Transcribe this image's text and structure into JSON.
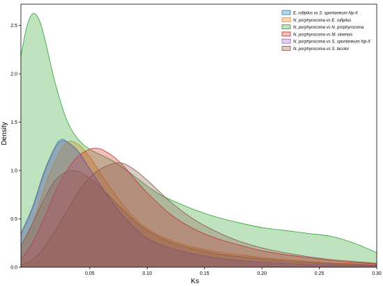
{
  "chart_data": {
    "type": "area",
    "title": "",
    "xlabel": "Ks",
    "ylabel": "Density",
    "xlim": [
      -0.01,
      0.3
    ],
    "ylim": [
      0,
      2.72
    ],
    "xticks": [
      {
        "value": 0.05,
        "label": "0.05"
      },
      {
        "value": 0.1,
        "label": "0.10"
      },
      {
        "value": 0.15,
        "label": "0.15"
      },
      {
        "value": 0.2,
        "label": "0.20"
      },
      {
        "value": 0.25,
        "label": "0.25"
      },
      {
        "value": 0.3,
        "label": "0.30"
      }
    ],
    "yticks": [
      {
        "value": 0.0,
        "label": "0.0"
      },
      {
        "value": 0.5,
        "label": "0.5"
      },
      {
        "value": 1.0,
        "label": "1.0"
      },
      {
        "value": 1.5,
        "label": "1.5"
      },
      {
        "value": 2.0,
        "label": "2.0"
      },
      {
        "value": 2.5,
        "label": "2.5"
      }
    ],
    "grid": false,
    "legend_position": "top-right",
    "series": [
      {
        "name": "E. rufipilus vs S. spontaneum Np-X",
        "color": "#1f77b4",
        "x": [
          -0.01,
          0.0,
          0.01,
          0.02,
          0.025,
          0.03,
          0.04,
          0.05,
          0.06,
          0.07,
          0.08,
          0.09,
          0.1,
          0.12,
          0.14,
          0.16,
          0.18,
          0.2,
          0.22,
          0.24,
          0.26,
          0.28,
          0.3
        ],
        "y": [
          0.35,
          0.62,
          0.98,
          1.25,
          1.32,
          1.3,
          1.2,
          1.02,
          0.84,
          0.67,
          0.52,
          0.4,
          0.3,
          0.2,
          0.14,
          0.1,
          0.07,
          0.055,
          0.04,
          0.03,
          0.025,
          0.018,
          0.012
        ]
      },
      {
        "name": "N. porphyrocoma vs E. rufipilus",
        "color": "#ff7f0e",
        "x": [
          -0.01,
          0.0,
          0.01,
          0.02,
          0.03,
          0.04,
          0.05,
          0.06,
          0.07,
          0.08,
          0.09,
          0.1,
          0.12,
          0.14,
          0.16,
          0.18,
          0.2,
          0.22,
          0.24,
          0.26,
          0.28,
          0.3
        ],
        "y": [
          0.22,
          0.45,
          0.8,
          1.1,
          1.29,
          1.27,
          1.14,
          0.96,
          0.79,
          0.63,
          0.5,
          0.4,
          0.28,
          0.21,
          0.16,
          0.13,
          0.1,
          0.08,
          0.06,
          0.045,
          0.035,
          0.025
        ]
      },
      {
        "name": "N. porphyrocoma vs N. porphyrocoma",
        "color": "#2ca02c",
        "x": [
          -0.01,
          -0.005,
          0.0,
          0.005,
          0.01,
          0.02,
          0.03,
          0.04,
          0.05,
          0.06,
          0.07,
          0.08,
          0.09,
          0.1,
          0.11,
          0.12,
          0.14,
          0.16,
          0.18,
          0.2,
          0.22,
          0.24,
          0.26,
          0.28,
          0.3
        ],
        "y": [
          2.18,
          2.48,
          2.62,
          2.58,
          2.4,
          1.9,
          1.52,
          1.32,
          1.22,
          1.16,
          1.1,
          1.02,
          0.93,
          0.84,
          0.76,
          0.7,
          0.6,
          0.52,
          0.46,
          0.41,
          0.38,
          0.35,
          0.32,
          0.25,
          0.15
        ]
      },
      {
        "name": "N. porphyrocoma vs M. sinensis",
        "color": "#d62728",
        "x": [
          -0.01,
          0.0,
          0.01,
          0.02,
          0.03,
          0.04,
          0.05,
          0.055,
          0.06,
          0.07,
          0.08,
          0.09,
          0.1,
          0.12,
          0.14,
          0.16,
          0.18,
          0.2,
          0.22,
          0.24,
          0.26,
          0.28,
          0.3
        ],
        "y": [
          0.08,
          0.25,
          0.5,
          0.78,
          1.0,
          1.15,
          1.22,
          1.23,
          1.22,
          1.15,
          1.04,
          0.9,
          0.77,
          0.55,
          0.4,
          0.3,
          0.23,
          0.17,
          0.13,
          0.1,
          0.07,
          0.05,
          0.035
        ]
      },
      {
        "name": "N. porphyrocoma vs S. spontaneum Np-X",
        "color": "#9467bd",
        "x": [
          -0.01,
          0.0,
          0.01,
          0.02,
          0.025,
          0.03,
          0.04,
          0.05,
          0.06,
          0.07,
          0.08,
          0.09,
          0.1,
          0.12,
          0.14,
          0.16,
          0.18,
          0.2,
          0.22,
          0.24,
          0.26,
          0.28,
          0.3
        ],
        "y": [
          0.33,
          0.6,
          0.96,
          1.23,
          1.3,
          1.29,
          1.19,
          1.01,
          0.83,
          0.66,
          0.51,
          0.39,
          0.29,
          0.19,
          0.13,
          0.09,
          0.065,
          0.05,
          0.038,
          0.028,
          0.022,
          0.016,
          0.01
        ]
      },
      {
        "name": "N. porphyrocoma vs S. bicolor",
        "color": "#8c564b",
        "x": [
          -0.01,
          0.0,
          0.01,
          0.02,
          0.03,
          0.04,
          0.05,
          0.06,
          0.07,
          0.075,
          0.08,
          0.09,
          0.1,
          0.12,
          0.14,
          0.16,
          0.18,
          0.2,
          0.22,
          0.24,
          0.26,
          0.28,
          0.3
        ],
        "y": [
          0.02,
          0.08,
          0.2,
          0.38,
          0.58,
          0.78,
          0.93,
          1.02,
          1.07,
          1.08,
          1.07,
          1.0,
          0.9,
          0.68,
          0.5,
          0.37,
          0.27,
          0.2,
          0.15,
          0.11,
          0.08,
          0.06,
          0.04
        ]
      },
      {
        "name": "",
        "color": "#8c564b",
        "x": [
          -0.01,
          0.0,
          0.01,
          0.02,
          0.03,
          0.035,
          0.04,
          0.05,
          0.06,
          0.07,
          0.08,
          0.09,
          0.1,
          0.12,
          0.14,
          0.16,
          0.18,
          0.2,
          0.22,
          0.24,
          0.26,
          0.28,
          0.3
        ],
        "y": [
          0.22,
          0.45,
          0.7,
          0.9,
          0.99,
          1.0,
          0.99,
          0.92,
          0.82,
          0.7,
          0.58,
          0.47,
          0.38,
          0.26,
          0.19,
          0.14,
          0.11,
          0.085,
          0.065,
          0.05,
          0.038,
          0.028,
          0.02
        ]
      }
    ]
  }
}
